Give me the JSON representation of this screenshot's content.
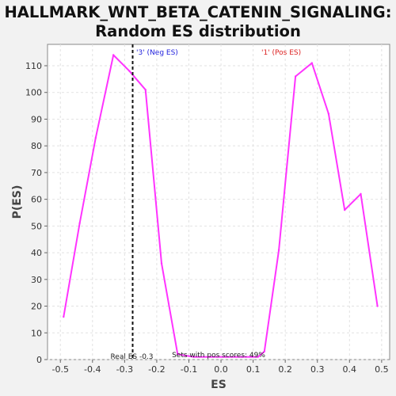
{
  "chart_data": {
    "type": "line",
    "title_line1": "HALLMARK_WNT_BETA_CATENIN_SIGNALING:",
    "title_line2": "Random ES distribution",
    "xlabel": "ES",
    "ylabel": "P(ES)",
    "xlim": [
      -0.54,
      0.525
    ],
    "ylim": [
      0,
      118
    ],
    "xticks": [
      -0.5,
      -0.4,
      -0.3,
      -0.2,
      -0.1,
      0.0,
      0.1,
      0.2,
      0.3,
      0.4,
      0.5
    ],
    "xtick_labels": [
      "-0.5",
      "-0.4",
      "-0.3",
      "-0.2",
      "-0.1",
      "0.0",
      "0.1",
      "0.2",
      "0.3",
      "0.4",
      "0.5"
    ],
    "yticks": [
      0,
      10,
      20,
      30,
      40,
      50,
      60,
      70,
      80,
      90,
      100,
      110
    ],
    "ytick_labels": [
      "0",
      "10",
      "20",
      "30",
      "40",
      "50",
      "60",
      "70",
      "80",
      "90",
      "100",
      "110"
    ],
    "grid": true,
    "series": [
      {
        "color": "#ff33ff",
        "x": [
          -0.49,
          -0.44,
          -0.39,
          -0.335,
          -0.285,
          -0.235,
          -0.185,
          -0.135,
          -0.085,
          -0.035,
          0.015,
          0.065,
          0.115,
          0.135,
          0.18,
          0.232,
          0.283,
          0.335,
          0.385,
          0.435,
          0.487
        ],
        "y": [
          16,
          51,
          83,
          114,
          108,
          101,
          36,
          2,
          1,
          1,
          1,
          1,
          1,
          3,
          41,
          106,
          111,
          92,
          56,
          62,
          20
        ]
      }
    ],
    "real_es": {
      "x": -0.275,
      "label": "Real ES -0.3"
    },
    "annotations": {
      "neg": {
        "text": "'3' (Neg ES)",
        "color": "#2222dd"
      },
      "pos": {
        "text": "'1' (Pos ES)",
        "color": "#dd2222"
      },
      "pos_scores": {
        "text": "Sets with pos scores: 49%",
        "color": "#222222"
      }
    }
  }
}
